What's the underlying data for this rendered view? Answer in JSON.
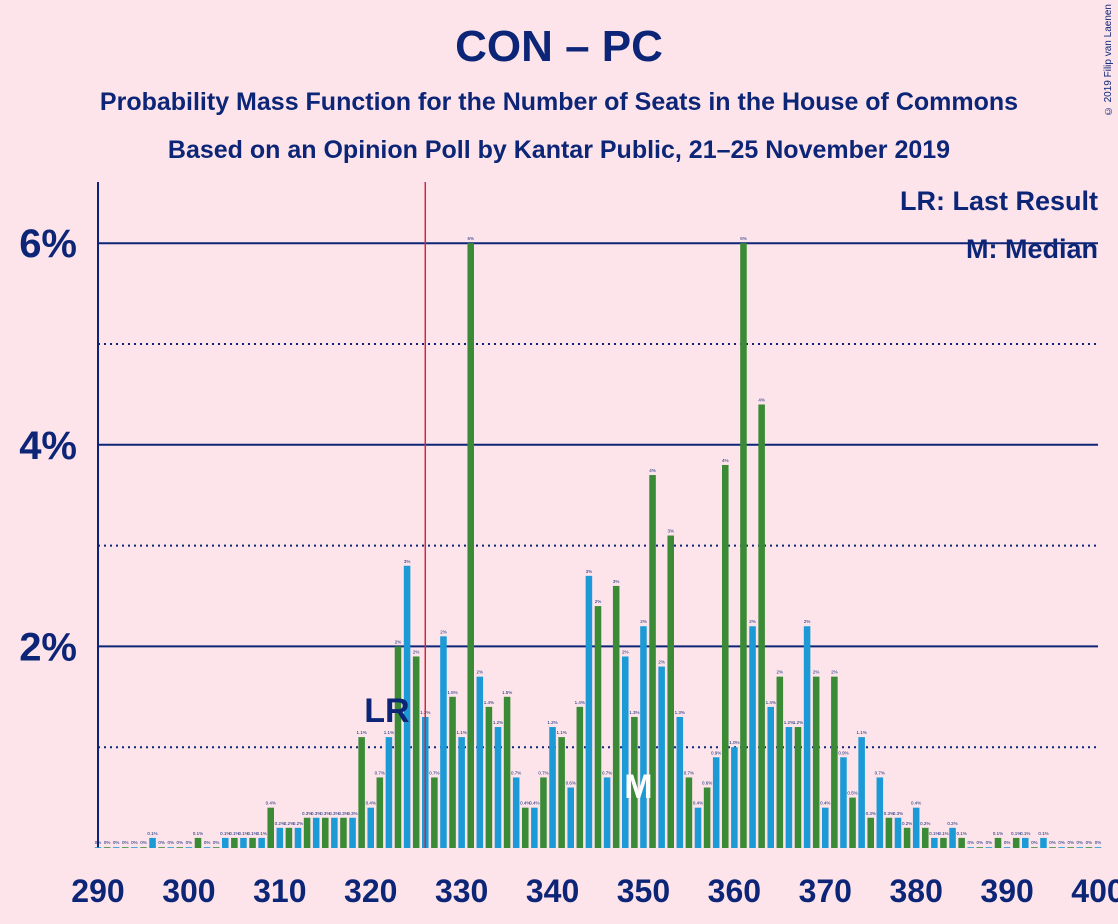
{
  "title": "CON – PC",
  "subtitle1": "Probability Mass Function for the Number of Seats in the House of Commons",
  "subtitle2": "Based on an Opinion Poll by Kantar Public, 21–25 November 2019",
  "copyright": "© 2019 Filip van Laenen",
  "legend": {
    "lr": "LR: Last Result",
    "m": "M: Median"
  },
  "colors": {
    "background": "#fde4ea",
    "text": "#0c2577",
    "con": "#3a8a36",
    "pc": "#1b9ad6",
    "majority_line": "#d7263d"
  },
  "chart_data": {
    "type": "bar",
    "series": [
      {
        "name": "CON – PC",
        "x_start": 290,
        "values": [
          0.0,
          0.0,
          0.0,
          0.0,
          0.0,
          0.0,
          0.1,
          0.0,
          0.0,
          0.0,
          0.0,
          0.1,
          0.0,
          0.0,
          0.1,
          0.1,
          0.1,
          0.1,
          0.1,
          0.4,
          0.2,
          0.2,
          0.2,
          0.3,
          0.3,
          0.3,
          0.3,
          0.3,
          0.3,
          1.1,
          0.4,
          0.7,
          1.1,
          2.0,
          2.8,
          1.9,
          1.3,
          0.7,
          2.1,
          1.5,
          1.1,
          6.0,
          1.7,
          1.4,
          1.2,
          1.5,
          0.7,
          0.4,
          0.4,
          0.7,
          1.2,
          1.1,
          0.6,
          1.4,
          2.7,
          2.4,
          0.7,
          2.6,
          1.9,
          1.3,
          2.2,
          3.7,
          1.8,
          3.1,
          1.3,
          0.7,
          0.4,
          0.6,
          0.9,
          3.8,
          1.0,
          6.0,
          2.2,
          4.4,
          1.4,
          1.7,
          1.2,
          1.2,
          2.2,
          1.7,
          0.4,
          1.7,
          0.9,
          0.5,
          1.1,
          0.3,
          0.7,
          0.3,
          0.3,
          0.2,
          0.4,
          0.2,
          0.1,
          0.1,
          0.2,
          0.1,
          0.0,
          0.0,
          0.0,
          0.1,
          0.0,
          0.1,
          0.1,
          0.0,
          0.1,
          0.0,
          0.0,
          0.0,
          0.0,
          0.0,
          0.0
        ]
      }
    ],
    "bar_labels": [
      "0%",
      "0%",
      "0%",
      "0%",
      "0%",
      "0%",
      "0.1%",
      "0%",
      "0%",
      "0%",
      "0%",
      "0.1%",
      "0%",
      "0%",
      "0.1%",
      "0.1%",
      "0.1%",
      "0.1%",
      "0.1%",
      "0.4%",
      "0.2%",
      "0.2%",
      "0.2%",
      "0.3%",
      "0.3%",
      "0.3%",
      "0.3%",
      "0.3%",
      "0.3%",
      "1.1%",
      "0.4%",
      "0.7%",
      "1.1%",
      "2%",
      "3%",
      "2%",
      "1.3%",
      "0.7%",
      "2%",
      "1.5%",
      "1.1%",
      "6%",
      "2%",
      "1.4%",
      "1.2%",
      "1.5%",
      "0.7%",
      "0.4%",
      "0.4%",
      "0.7%",
      "1.2%",
      "1.1%",
      "0.6%",
      "1.4%",
      "3%",
      "2%",
      "0.7%",
      "3%",
      "2%",
      "1.3%",
      "2%",
      "4%",
      "2%",
      "3%",
      "1.3%",
      "0.7%",
      "0.4%",
      "0.6%",
      "0.9%",
      "4%",
      "1.0%",
      "6%",
      "2%",
      "4%",
      "1.4%",
      "2%",
      "1.2%",
      "1.2%",
      "2%",
      "2%",
      "0.4%",
      "2%",
      "0.9%",
      "0.5%",
      "1.1%",
      "0.3%",
      "0.7%",
      "0.3%",
      "0.3%",
      "0.2%",
      "0.4%",
      "0.2%",
      "0.1%",
      "0.1%",
      "0.2%",
      "0.1%",
      "0%",
      "0%",
      "0%",
      "0.1%",
      "0%",
      "0.1%",
      "0.1%",
      "0%",
      "0.1%",
      "0%",
      "0%",
      "0%",
      "0%",
      "0%",
      "0%"
    ],
    "x_ticks": [
      "290",
      "300",
      "310",
      "320",
      "330",
      "340",
      "350",
      "360",
      "370",
      "380",
      "390",
      "400"
    ],
    "y_ticks": [
      "2%",
      "4%",
      "6%"
    ],
    "xlim": [
      290,
      400
    ],
    "ylim": [
      0,
      6.6
    ],
    "majority_x": 326,
    "last_result_x": 322,
    "last_result_label": "LR",
    "median_x": 349,
    "median_label": "M",
    "grid": "solid at 2% steps, dotted at 1% steps"
  }
}
